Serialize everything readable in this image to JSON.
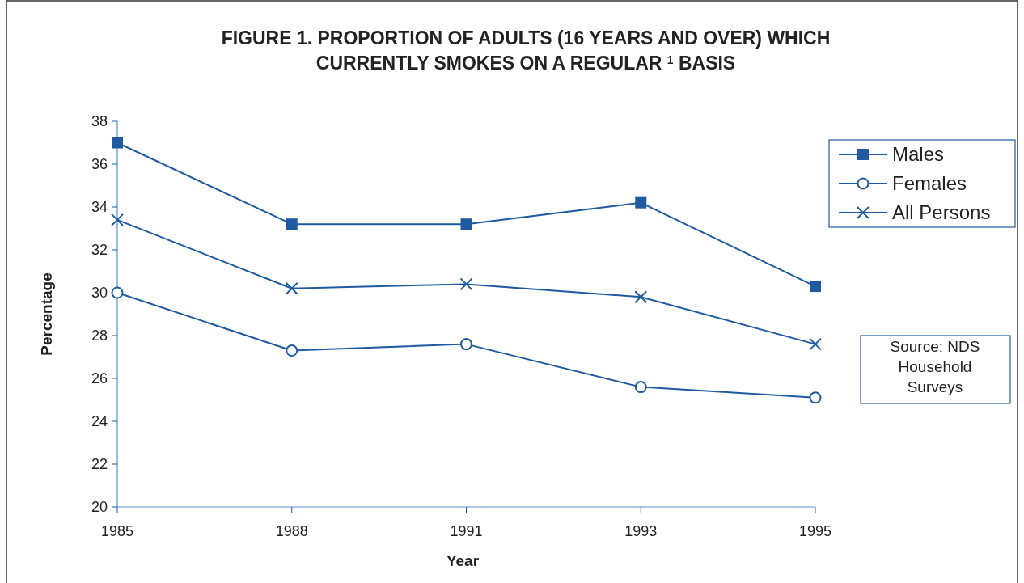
{
  "chart_data": {
    "type": "line",
    "title": "FIGURE 1. PROPORTION OF ADULTS (16 YEARS AND OVER) WHICH CURRENTLY SMOKES ON A REGULAR $^{1}$ BASIS",
    "xlabel": "Year",
    "ylabel": "Percentage",
    "categories": [
      "1985",
      "1988",
      "1991",
      "1993",
      "1995"
    ],
    "series": [
      {
        "name": "Males",
        "color": "#1f5aa0",
        "marker": "square",
        "values": [
          37.0,
          33.2,
          33.2,
          34.2,
          30.3
        ]
      },
      {
        "name": "Females",
        "color": "#1f5aa0",
        "marker": "circle",
        "values": [
          30.0,
          27.3,
          27.6,
          25.6,
          25.1
        ]
      },
      {
        "name": "All Persons",
        "color": "#1f5aa0",
        "marker": "cross",
        "values": [
          33.4,
          30.2,
          30.4,
          29.8,
          27.6
        ]
      }
    ],
    "ylim": [
      20,
      38
    ],
    "yticks": [
      20,
      22,
      24,
      26,
      28,
      30,
      32,
      34,
      36,
      38
    ],
    "grid": false,
    "legend": "top right",
    "line_style": "solid",
    "annotations": [
      "Source: NDS Household Surveys"
    ]
  }
}
